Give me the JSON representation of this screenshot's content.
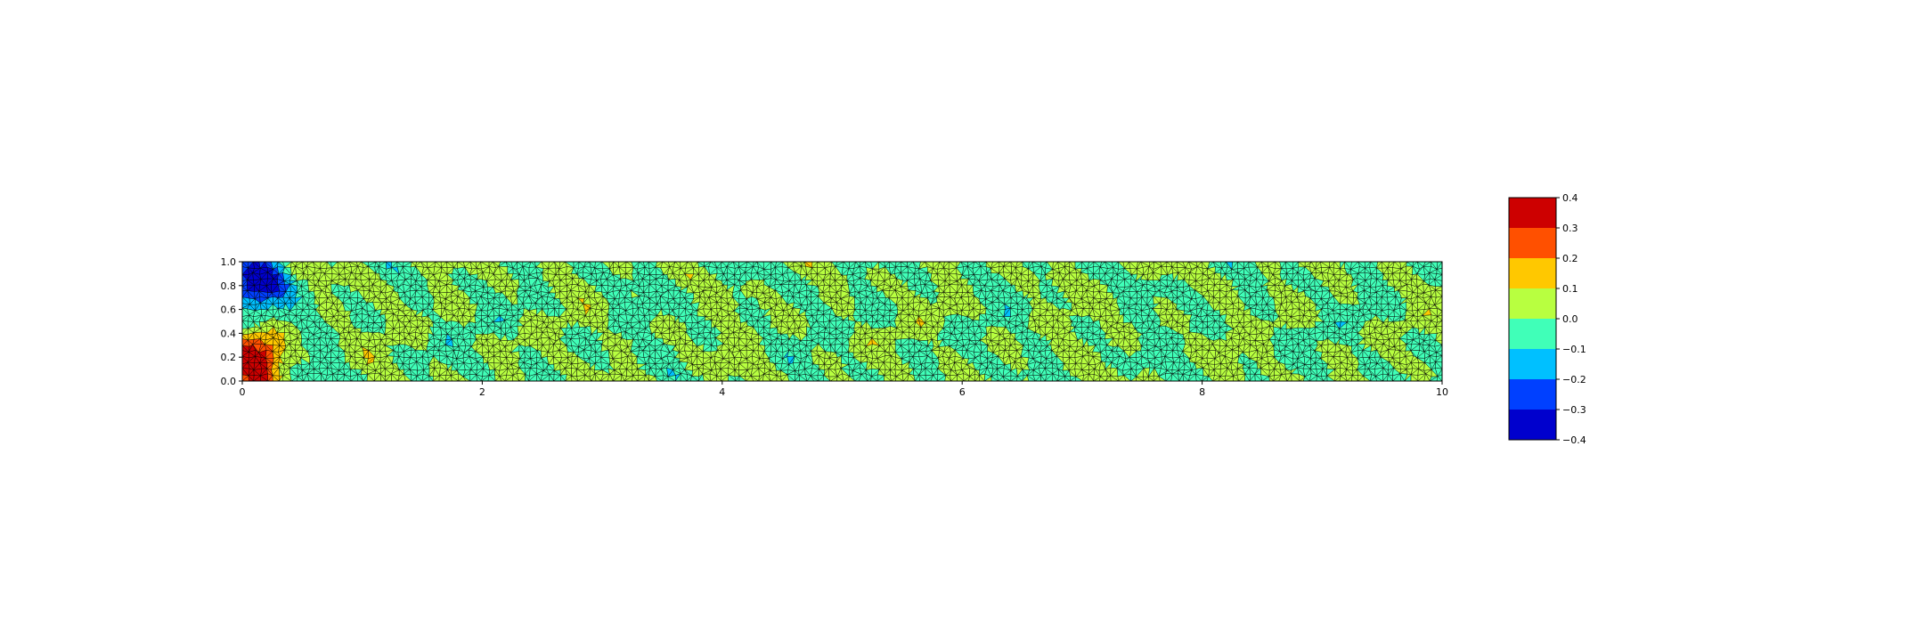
{
  "chart_data": [
    {
      "type": "heatmap",
      "subtype": "filled contour on triangular mesh",
      "title": "",
      "xlabel": "",
      "ylabel": "",
      "xlim": [
        0,
        10
      ],
      "ylim": [
        0,
        1
      ],
      "x_ticks": [
        0,
        2,
        4,
        6,
        8,
        10
      ],
      "y_ticks": [
        0.0,
        0.2,
        0.4,
        0.6,
        0.8,
        1.0
      ],
      "x_tick_labels": [
        "0",
        "2",
        "4",
        "6",
        "8",
        "10"
      ],
      "y_tick_labels": [
        "0.0",
        "0.2",
        "0.4",
        "0.6",
        "0.8",
        "1.0"
      ],
      "colormap": "jet",
      "grid": false,
      "mesh": "triangular mesh edges drawn in black",
      "field_features": [
        {
          "label": "minimum",
          "x": 0.12,
          "y": 0.82,
          "value": -0.4
        },
        {
          "label": "maximum",
          "x": 0.12,
          "y": 0.18,
          "value": 0.4
        }
      ],
      "background_level_range": [
        -0.1,
        0.1
      ]
    },
    {
      "type": "colorbar",
      "levels": [
        -0.4,
        -0.3,
        -0.2,
        -0.1,
        0.0,
        0.1,
        0.2,
        0.3,
        0.4
      ],
      "tick_labels": [
        "−0.4",
        "−0.3",
        "−0.2",
        "−0.1",
        "0.0",
        "0.1",
        "0.2",
        "0.3",
        "0.4"
      ],
      "band_colors": [
        "#0000cd",
        "#0040ff",
        "#00c0ff",
        "#40ffb8",
        "#b8ff40",
        "#ffc800",
        "#ff5000",
        "#cd0000"
      ]
    }
  ]
}
